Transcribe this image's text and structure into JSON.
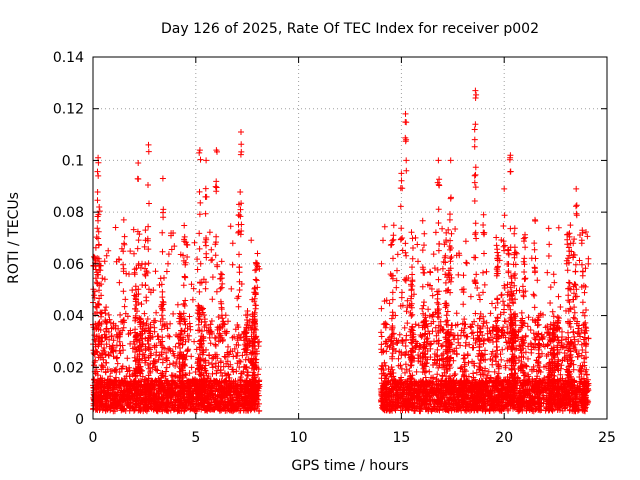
{
  "chart_data": {
    "type": "scatter",
    "title": "Day 126 of 2025, Rate Of TEC Index for receiver p002",
    "xlabel": "GPS time / hours",
    "ylabel": "ROTI / TECUs",
    "xlim": [
      0,
      25
    ],
    "ylim": [
      0,
      0.14
    ],
    "x_ticks": [
      0,
      5,
      10,
      15,
      20,
      25
    ],
    "x_tick_labels": [
      "0",
      "5",
      "10",
      "15",
      "20",
      "25"
    ],
    "y_ticks": [
      0,
      0.02,
      0.04,
      0.06,
      0.08,
      0.1,
      0.12,
      0.14
    ],
    "y_tick_labels": [
      "0",
      "0.02",
      "0.04",
      "0.06",
      "0.08",
      "0.1",
      "0.12",
      "0.14"
    ],
    "grid": true,
    "marker": "plus",
    "color": "#ff0000",
    "series": [
      {
        "segments": [
          {
            "x_range": [
              0.0,
              8.1
            ]
          },
          {
            "x_range": [
              14.0,
              24.1
            ]
          }
        ],
        "peaks": [
          {
            "x": 0.25,
            "y": 0.101
          },
          {
            "x": 0.3,
            "y": 0.082
          },
          {
            "x": 1.5,
            "y": 0.077
          },
          {
            "x": 2.2,
            "y": 0.099
          },
          {
            "x": 2.7,
            "y": 0.106
          },
          {
            "x": 3.4,
            "y": 0.093
          },
          {
            "x": 5.2,
            "y": 0.104
          },
          {
            "x": 5.5,
            "y": 0.1
          },
          {
            "x": 6.0,
            "y": 0.104
          },
          {
            "x": 7.2,
            "y": 0.111
          },
          {
            "x": 7.1,
            "y": 0.083
          },
          {
            "x": 15.2,
            "y": 0.118
          },
          {
            "x": 15.0,
            "y": 0.095
          },
          {
            "x": 16.8,
            "y": 0.1
          },
          {
            "x": 17.4,
            "y": 0.1
          },
          {
            "x": 18.6,
            "y": 0.127
          },
          {
            "x": 18.6,
            "y": 0.114
          },
          {
            "x": 20.3,
            "y": 0.102
          },
          {
            "x": 23.5,
            "y": 0.089
          },
          {
            "x": 20.0,
            "y": 0.089
          },
          {
            "x": 21.5,
            "y": 0.077
          },
          {
            "x": 23.8,
            "y": 0.073
          },
          {
            "x": 19.0,
            "y": 0.079
          }
        ]
      }
    ]
  }
}
